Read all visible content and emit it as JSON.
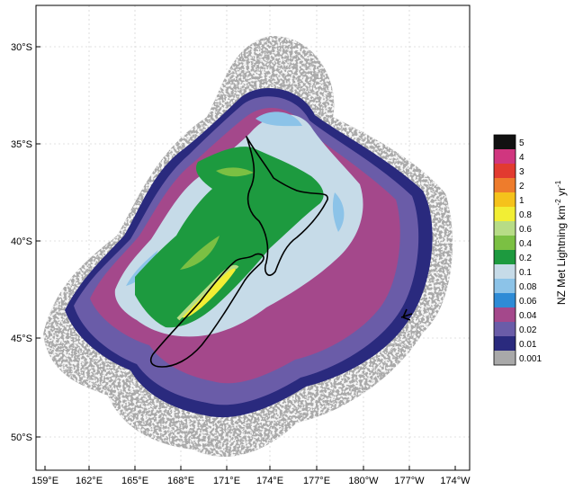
{
  "map": {
    "x_ticks": [
      "159°E",
      "162°E",
      "165°E",
      "168°E",
      "171°E",
      "174°E",
      "177°E",
      "180°W",
      "177°W",
      "174°W"
    ],
    "y_ticks": [
      "30°S",
      "35°S",
      "40°S",
      "45°S",
      "50°S"
    ],
    "colorbar": {
      "title": "NZ Met Lightning km",
      "title_exponent1": "-2",
      "title_unit2": "yr",
      "title_exponent2": "-1",
      "levels": [
        {
          "label": "5",
          "color": "#111111"
        },
        {
          "label": "4",
          "color": "#d0367f"
        },
        {
          "label": "3",
          "color": "#e23b30"
        },
        {
          "label": "2",
          "color": "#ee7c2c"
        },
        {
          "label": "1",
          "color": "#f5c21b"
        },
        {
          "label": "0.8",
          "color": "#f2ee34"
        },
        {
          "label": "0.6",
          "color": "#b7dc86"
        },
        {
          "label": "0.4",
          "color": "#7bc043"
        },
        {
          "label": "0.2",
          "color": "#1d9a3f"
        },
        {
          "label": "0.1",
          "color": "#c6dbe8"
        },
        {
          "label": "0.08",
          "color": "#8cc3e8"
        },
        {
          "label": "0.06",
          "color": "#2e8bd6"
        },
        {
          "label": "0.04",
          "color": "#a4488b"
        },
        {
          "label": "0.02",
          "color": "#6a5ca8"
        },
        {
          "label": "0.01",
          "color": "#2a2a7e"
        },
        {
          "label": "0.001",
          "color": "#a9a9a9"
        }
      ]
    }
  }
}
